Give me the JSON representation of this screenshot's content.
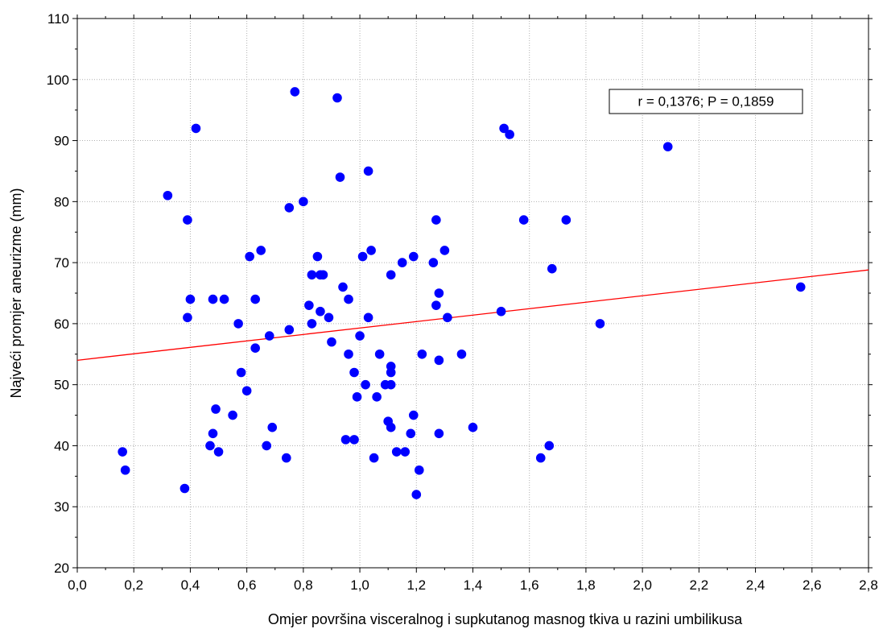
{
  "chart_data": {
    "type": "scatter",
    "xlabel": "Omjer površina visceralnog i supkutanog masnog tkiva u razini umbilikusa",
    "ylabel": "Najveći promjer aneurizme (mm)",
    "xlim": [
      0.0,
      2.8
    ],
    "ylim": [
      20,
      110
    ],
    "x_ticks": [
      0.0,
      0.2,
      0.4,
      0.6,
      0.8,
      1.0,
      1.2,
      1.4,
      1.6,
      1.8,
      2.0,
      2.2,
      2.4,
      2.6,
      2.8
    ],
    "x_tick_labels": [
      "0,0",
      "0,2",
      "0,4",
      "0,6",
      "0,8",
      "1,0",
      "1,2",
      "1,4",
      "1,6",
      "1,8",
      "2,0",
      "2,2",
      "2,4",
      "2,6",
      "2,8"
    ],
    "y_ticks": [
      20,
      30,
      40,
      50,
      60,
      70,
      80,
      90,
      100,
      110
    ],
    "y_tick_labels": [
      "20",
      "30",
      "40",
      "50",
      "60",
      "70",
      "80",
      "90",
      "100",
      "110"
    ],
    "grid": true,
    "annotation": "r = 0,1376; P = 0,1859",
    "colors": {
      "points": "#0000ff",
      "fit_line": "#ff0000",
      "grid": "#b0b0b0"
    },
    "fit_line": {
      "x": [
        0.0,
        2.8
      ],
      "y": [
        54.0,
        68.8
      ]
    },
    "points": [
      [
        0.16,
        39
      ],
      [
        0.17,
        36
      ],
      [
        0.32,
        81
      ],
      [
        0.38,
        33
      ],
      [
        0.39,
        77
      ],
      [
        0.39,
        61
      ],
      [
        0.4,
        64
      ],
      [
        0.42,
        92
      ],
      [
        0.47,
        40
      ],
      [
        0.48,
        42
      ],
      [
        0.48,
        64
      ],
      [
        0.49,
        46
      ],
      [
        0.5,
        39
      ],
      [
        0.52,
        64
      ],
      [
        0.55,
        45
      ],
      [
        0.57,
        60
      ],
      [
        0.58,
        52
      ],
      [
        0.6,
        49
      ],
      [
        0.61,
        71
      ],
      [
        0.63,
        56
      ],
      [
        0.63,
        64
      ],
      [
        0.65,
        72
      ],
      [
        0.67,
        40
      ],
      [
        0.68,
        58
      ],
      [
        0.69,
        43
      ],
      [
        0.74,
        38
      ],
      [
        0.75,
        59
      ],
      [
        0.75,
        79
      ],
      [
        0.77,
        98
      ],
      [
        0.8,
        80
      ],
      [
        0.82,
        63
      ],
      [
        0.83,
        68
      ],
      [
        0.83,
        60
      ],
      [
        0.85,
        71
      ],
      [
        0.86,
        62
      ],
      [
        0.86,
        68
      ],
      [
        0.87,
        68
      ],
      [
        0.89,
        61
      ],
      [
        0.9,
        57
      ],
      [
        0.92,
        97
      ],
      [
        0.93,
        84
      ],
      [
        0.94,
        66
      ],
      [
        0.95,
        41
      ],
      [
        0.96,
        64
      ],
      [
        0.96,
        55
      ],
      [
        0.98,
        52
      ],
      [
        0.98,
        41
      ],
      [
        0.99,
        48
      ],
      [
        1.0,
        58
      ],
      [
        1.01,
        71
      ],
      [
        1.02,
        50
      ],
      [
        1.03,
        61
      ],
      [
        1.03,
        85
      ],
      [
        1.04,
        72
      ],
      [
        1.05,
        38
      ],
      [
        1.06,
        48
      ],
      [
        1.07,
        55
      ],
      [
        1.09,
        50
      ],
      [
        1.1,
        44
      ],
      [
        1.11,
        68
      ],
      [
        1.11,
        50
      ],
      [
        1.11,
        43
      ],
      [
        1.11,
        52
      ],
      [
        1.11,
        53
      ],
      [
        1.13,
        39
      ],
      [
        1.15,
        70
      ],
      [
        1.16,
        39
      ],
      [
        1.18,
        42
      ],
      [
        1.19,
        45
      ],
      [
        1.19,
        71
      ],
      [
        1.2,
        32
      ],
      [
        1.21,
        36
      ],
      [
        1.22,
        55
      ],
      [
        1.26,
        70
      ],
      [
        1.27,
        77
      ],
      [
        1.27,
        63
      ],
      [
        1.28,
        65
      ],
      [
        1.28,
        54
      ],
      [
        1.28,
        42
      ],
      [
        1.3,
        72
      ],
      [
        1.31,
        61
      ],
      [
        1.36,
        55
      ],
      [
        1.4,
        43
      ],
      [
        1.5,
        62
      ],
      [
        1.51,
        92
      ],
      [
        1.53,
        91
      ],
      [
        1.58,
        77
      ],
      [
        1.64,
        38
      ],
      [
        1.67,
        40
      ],
      [
        1.68,
        69
      ],
      [
        1.73,
        77
      ],
      [
        1.85,
        60
      ],
      [
        2.09,
        89
      ],
      [
        2.56,
        66
      ]
    ]
  }
}
